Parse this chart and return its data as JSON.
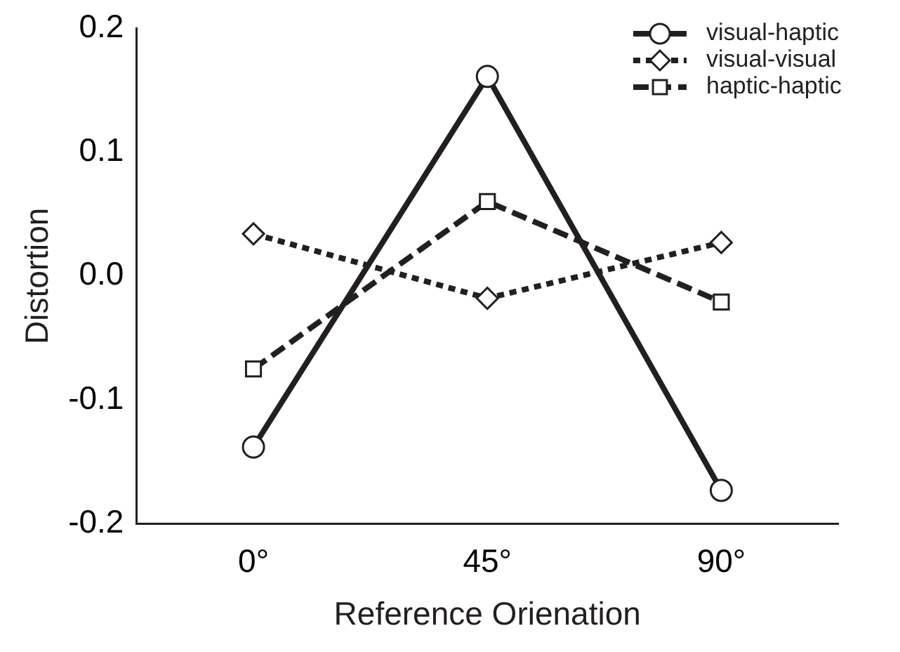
{
  "chart_data": {
    "type": "line",
    "xlabel": "Reference Orienation",
    "ylabel": "Distortion",
    "categories": [
      "0°",
      "45°",
      "90°"
    ],
    "ylim": [
      -0.2,
      0.2
    ],
    "yticks": [
      {
        "value": -0.2,
        "label": "-0.2"
      },
      {
        "value": -0.1,
        "label": "-0.1"
      },
      {
        "value": 0,
        "label": "0.0"
      },
      {
        "value": 0.1,
        "label": "0.1"
      },
      {
        "value": 0.2,
        "label": "0.2"
      }
    ],
    "grid": false,
    "legend": "top right",
    "series": [
      {
        "name": "visual-haptic",
        "color": "#231f20",
        "values": [
          -0.138,
          0.161,
          -0.173
        ],
        "marker": "circle",
        "line_style": "solid"
      },
      {
        "name": "visual-visual",
        "color": "#231f20",
        "values": [
          0.034,
          -0.018,
          0.027
        ],
        "marker": "diamond",
        "line_style": "dotted"
      },
      {
        "name": "haptic-haptic",
        "color": "#231f20",
        "values": [
          -0.075,
          0.06,
          -0.021
        ],
        "marker": "square",
        "line_style": "dashed"
      }
    ]
  }
}
